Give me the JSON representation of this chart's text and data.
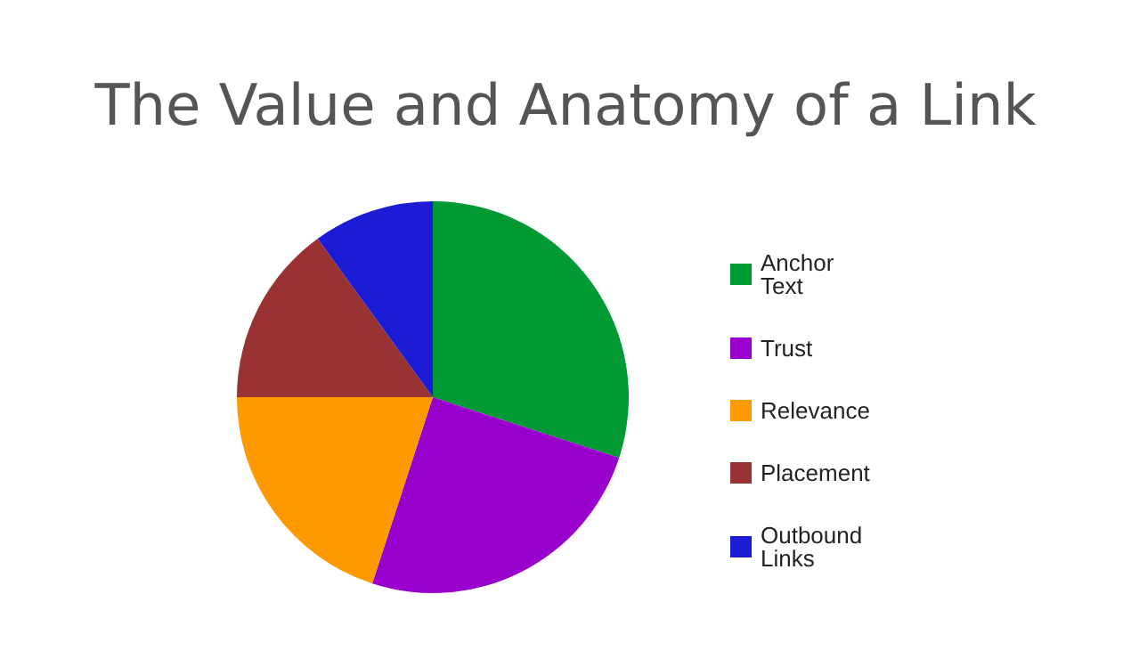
{
  "chart_data": {
    "type": "pie",
    "title": "The Value and Anatomy of a Link",
    "categories": [
      "Anchor Text",
      "Trust",
      "Relevance",
      "Placement",
      "Outbound Links"
    ],
    "values": [
      30,
      25,
      20,
      15,
      10
    ],
    "colors": [
      "#009933",
      "#9900cc",
      "#ff9900",
      "#993333",
      "#1c1cd6"
    ],
    "legend": "right"
  }
}
